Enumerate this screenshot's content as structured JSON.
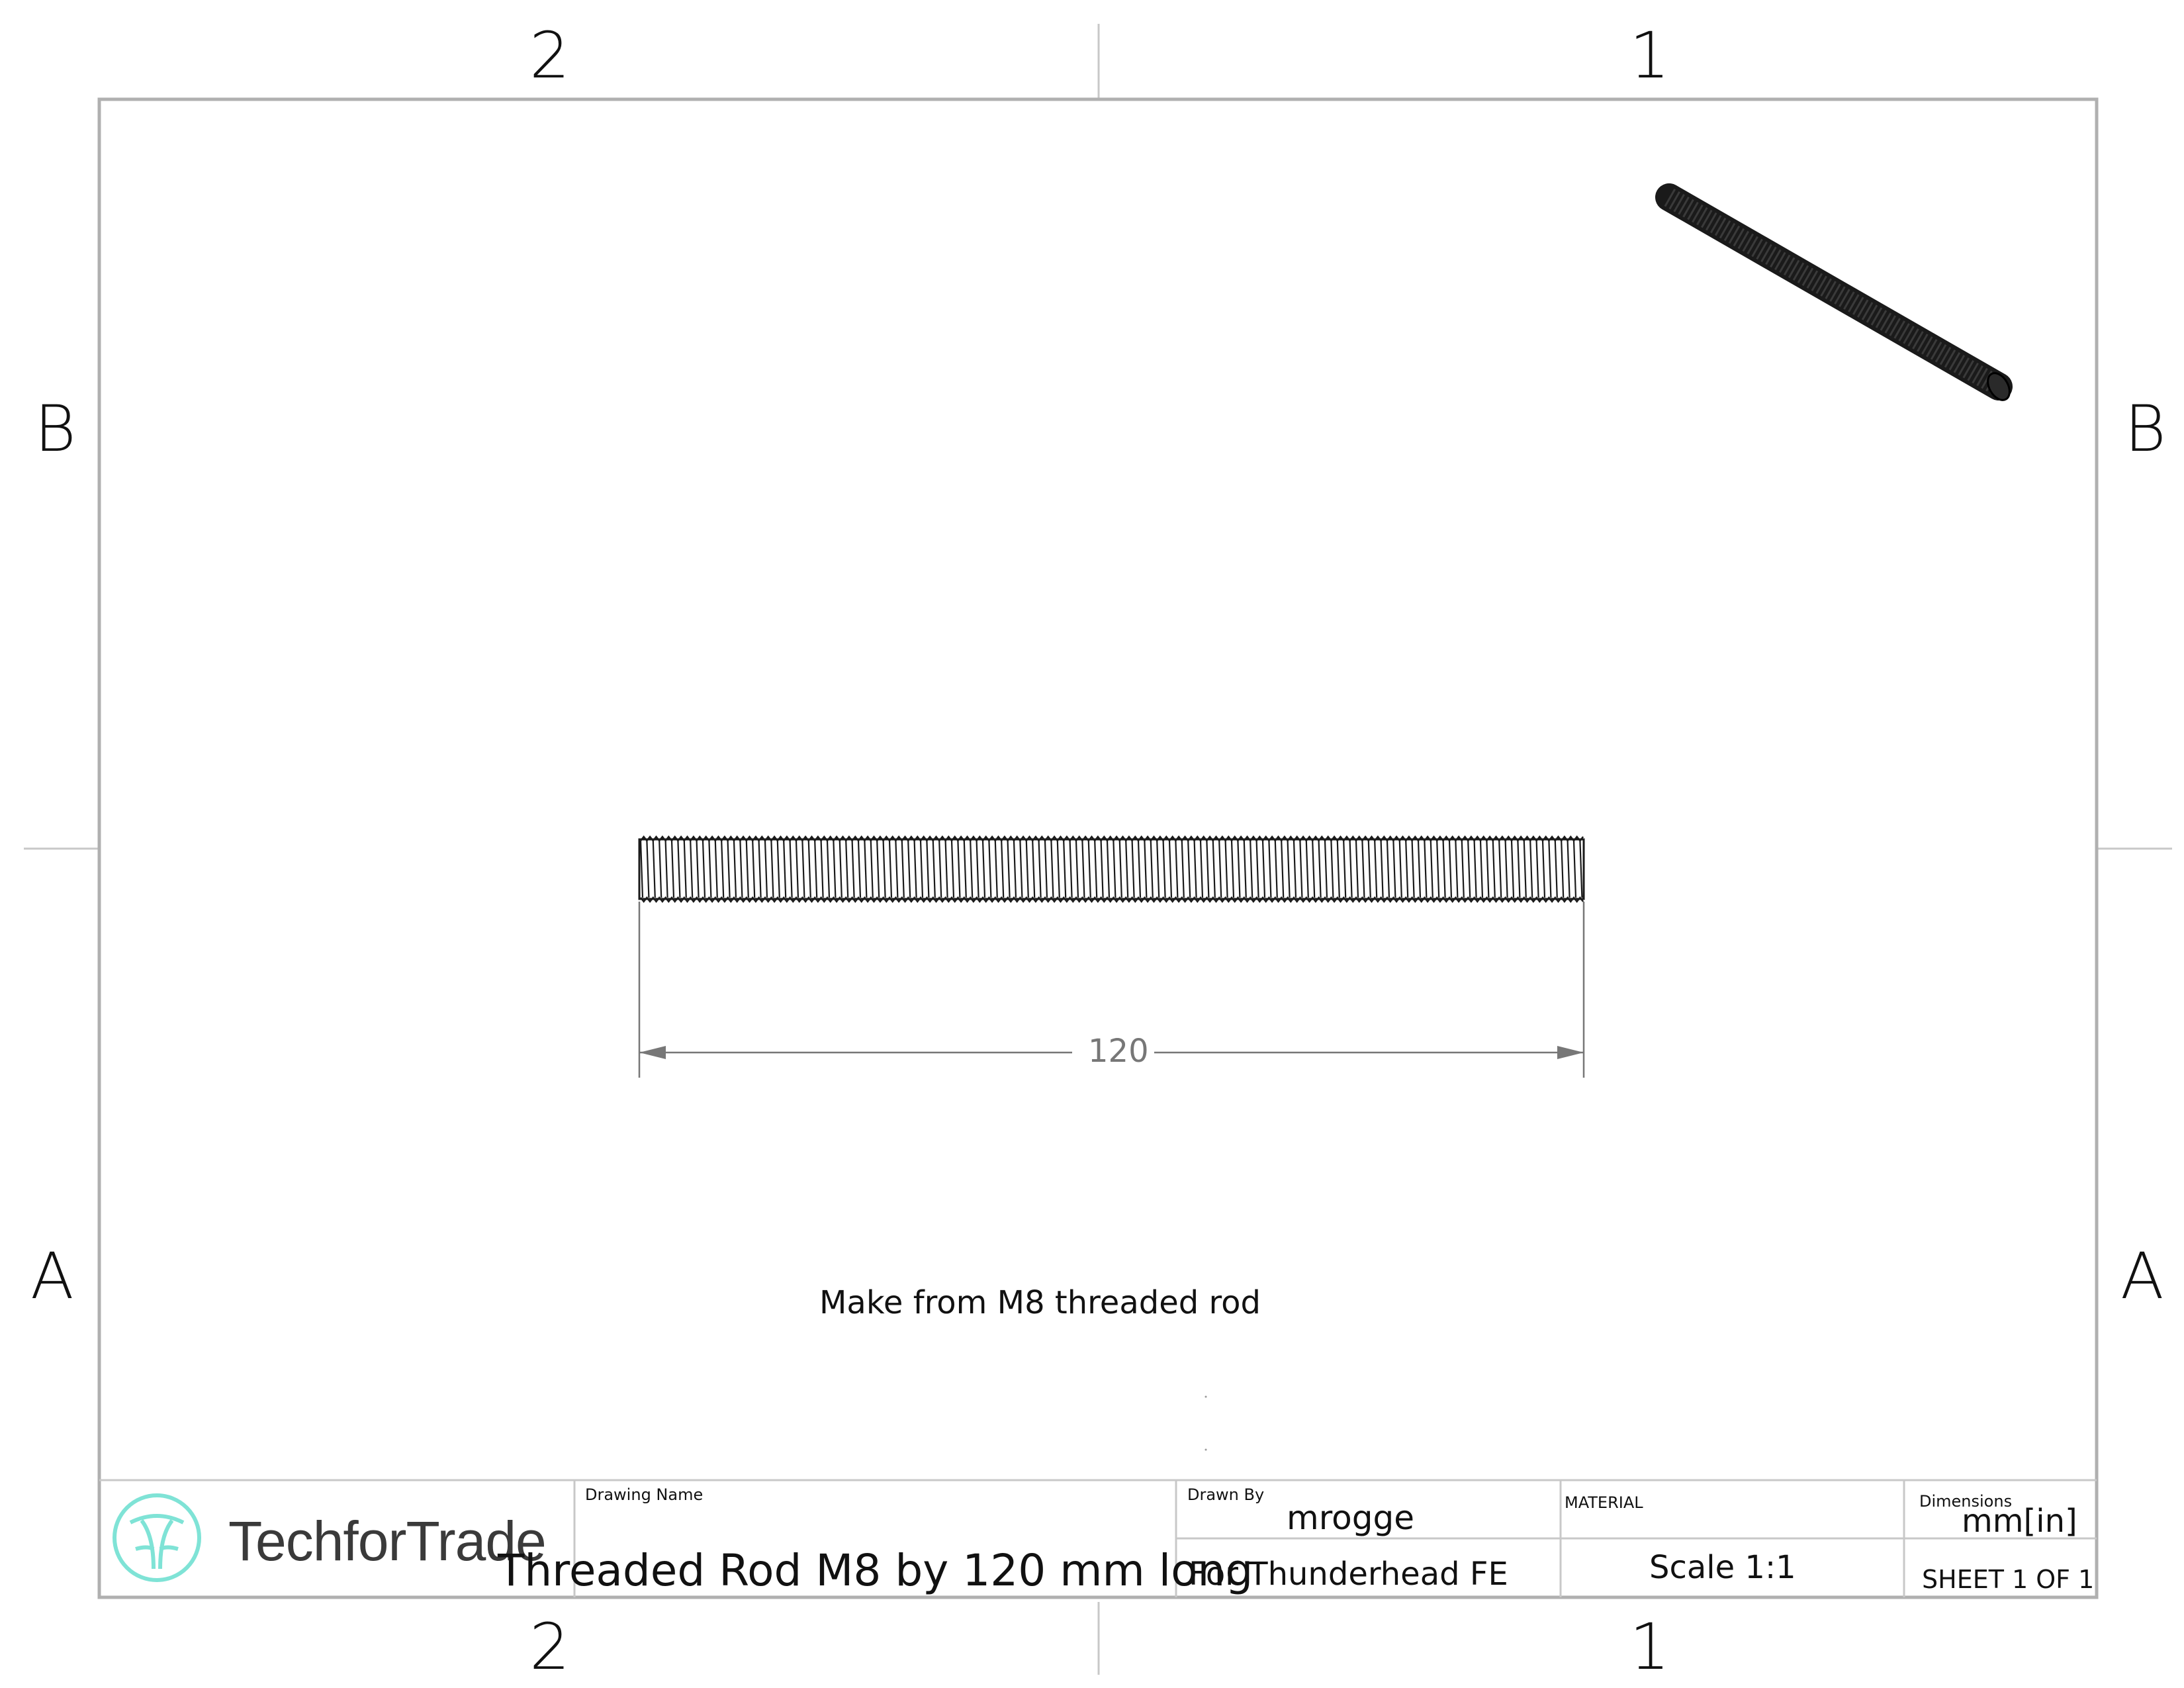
{
  "zones": {
    "columns": [
      "2",
      "1"
    ],
    "rows": [
      "B",
      "A"
    ]
  },
  "dimension": {
    "value": "120"
  },
  "note": "Make from M8 threaded rod",
  "title_block": {
    "company": "TechforTrade",
    "drawing_name_label": "Drawing Name",
    "drawing_name": "Threaded Rod M8 by 120 mm long",
    "drawn_by_label": "Drawn By",
    "drawn_by": "mrogge",
    "project": "For Thunderhead FE",
    "material_label": "MATERIAL",
    "scale": "Scale 1:1",
    "dimensions_label": "Dimensions",
    "units": "mm[in]",
    "sheet": "SHEET 1 OF 1"
  },
  "colors": {
    "logo_accent": "#7fe3d6",
    "border": "#b0b0b0",
    "rod": "#1a1a1a",
    "dimension": "#777777"
  },
  "icons": {
    "logo": "techfortrade-logo-icon"
  }
}
